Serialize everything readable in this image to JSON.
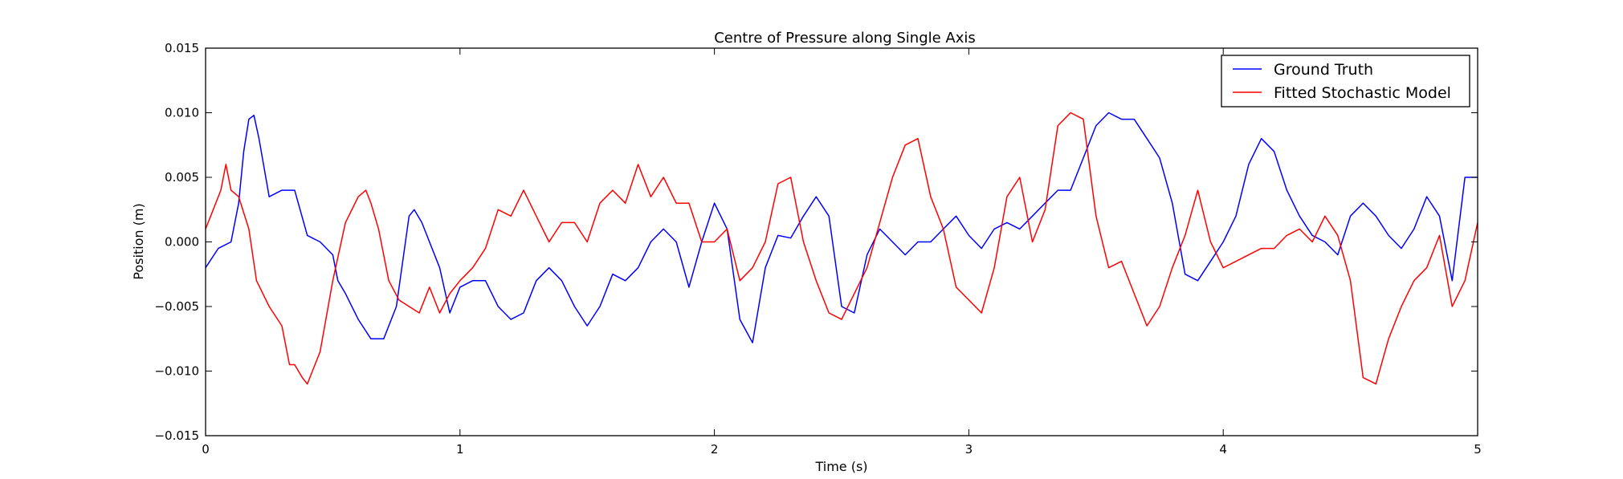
{
  "chart_data": {
    "type": "line",
    "title": "Centre of Pressure along Single Axis",
    "xlabel": "Time (s)",
    "ylabel": "Position (m)",
    "xlim": [
      0,
      5
    ],
    "ylim": [
      -0.015,
      0.015
    ],
    "xticks": [
      0,
      1,
      2,
      3,
      4,
      5
    ],
    "xtick_labels": [
      "0",
      "1",
      "2",
      "3",
      "4",
      "5"
    ],
    "yticks": [
      -0.015,
      -0.01,
      -0.005,
      0.0,
      0.005,
      0.01,
      0.015
    ],
    "ytick_labels": [
      "−0.015",
      "−0.010",
      "−0.005",
      "0.000",
      "0.005",
      "0.010",
      "0.015"
    ],
    "grid": false,
    "legend_position": "top-right",
    "series": [
      {
        "name": "Ground Truth",
        "color": "#0000ff",
        "x": [
          0,
          0.05,
          0.1,
          0.13,
          0.15,
          0.17,
          0.19,
          0.21,
          0.25,
          0.3,
          0.35,
          0.4,
          0.45,
          0.5,
          0.52,
          0.55,
          0.6,
          0.65,
          0.7,
          0.75,
          0.8,
          0.82,
          0.85,
          0.88,
          0.92,
          0.96,
          1.0,
          1.05,
          1.1,
          1.15,
          1.2,
          1.25,
          1.3,
          1.35,
          1.4,
          1.45,
          1.5,
          1.55,
          1.6,
          1.65,
          1.7,
          1.75,
          1.8,
          1.85,
          1.9,
          1.95,
          2.0,
          2.05,
          2.1,
          2.15,
          2.2,
          2.25,
          2.3,
          2.35,
          2.4,
          2.45,
          2.5,
          2.55,
          2.6,
          2.65,
          2.7,
          2.75,
          2.8,
          2.85,
          2.9,
          2.95,
          3.0,
          3.05,
          3.1,
          3.15,
          3.2,
          3.25,
          3.3,
          3.35,
          3.4,
          3.45,
          3.5,
          3.55,
          3.6,
          3.65,
          3.7,
          3.75,
          3.8,
          3.85,
          3.9,
          3.95,
          4.0,
          4.05,
          4.1,
          4.15,
          4.2,
          4.25,
          4.3,
          4.35,
          4.4,
          4.45,
          4.5,
          4.55,
          4.6,
          4.65,
          4.7,
          4.75,
          4.8,
          4.85,
          4.9,
          4.95,
          5.0
        ],
        "y": [
          -0.002,
          -0.0005,
          0.0,
          0.003,
          0.007,
          0.0095,
          0.0098,
          0.008,
          0.0035,
          0.004,
          0.004,
          0.0005,
          0.0,
          -0.001,
          -0.003,
          -0.004,
          -0.006,
          -0.0075,
          -0.0075,
          -0.005,
          0.002,
          0.0025,
          0.0015,
          0.0,
          -0.002,
          -0.0055,
          -0.0035,
          -0.003,
          -0.003,
          -0.005,
          -0.006,
          -0.0055,
          -0.003,
          -0.002,
          -0.003,
          -0.005,
          -0.0065,
          -0.005,
          -0.0025,
          -0.003,
          -0.002,
          0.0,
          0.001,
          0.0,
          -0.0035,
          0.0,
          0.003,
          0.001,
          -0.006,
          -0.0078,
          -0.002,
          0.0005,
          0.0003,
          0.002,
          0.0035,
          0.002,
          -0.005,
          -0.0055,
          -0.001,
          0.001,
          0.0,
          -0.001,
          0.0,
          0.0,
          0.001,
          0.002,
          0.0005,
          -0.0005,
          0.001,
          0.0015,
          0.001,
          0.002,
          0.003,
          0.004,
          0.004,
          0.0065,
          0.009,
          0.01,
          0.0095,
          0.0095,
          0.008,
          0.0065,
          0.003,
          -0.0025,
          -0.003,
          -0.0015,
          0.0,
          0.002,
          0.006,
          0.008,
          0.007,
          0.004,
          0.002,
          0.0005,
          0.0,
          -0.001,
          0.002,
          0.003,
          0.002,
          0.0005,
          -0.0005,
          0.001,
          0.0035,
          0.002,
          -0.003,
          0.005,
          0.005
        ]
      },
      {
        "name": "Fitted Stochastic Model",
        "color": "#ff0000",
        "x": [
          0,
          0.03,
          0.06,
          0.08,
          0.1,
          0.13,
          0.17,
          0.2,
          0.25,
          0.3,
          0.33,
          0.35,
          0.38,
          0.4,
          0.45,
          0.5,
          0.55,
          0.6,
          0.63,
          0.65,
          0.68,
          0.72,
          0.76,
          0.8,
          0.84,
          0.88,
          0.92,
          0.96,
          1.0,
          1.05,
          1.1,
          1.15,
          1.2,
          1.25,
          1.3,
          1.35,
          1.4,
          1.45,
          1.5,
          1.55,
          1.6,
          1.65,
          1.7,
          1.75,
          1.8,
          1.85,
          1.9,
          1.95,
          2.0,
          2.05,
          2.1,
          2.15,
          2.2,
          2.25,
          2.3,
          2.35,
          2.4,
          2.45,
          2.5,
          2.55,
          2.6,
          2.65,
          2.7,
          2.75,
          2.8,
          2.85,
          2.9,
          2.95,
          3.0,
          3.05,
          3.1,
          3.15,
          3.2,
          3.25,
          3.3,
          3.35,
          3.4,
          3.45,
          3.5,
          3.55,
          3.6,
          3.65,
          3.7,
          3.75,
          3.8,
          3.85,
          3.9,
          3.95,
          4.0,
          4.05,
          4.1,
          4.15,
          4.2,
          4.25,
          4.3,
          4.35,
          4.4,
          4.45,
          4.5,
          4.55,
          4.6,
          4.65,
          4.7,
          4.75,
          4.8,
          4.85,
          4.9,
          4.95,
          5.0
        ],
        "y": [
          0.001,
          0.0025,
          0.004,
          0.006,
          0.004,
          0.0035,
          0.001,
          -0.003,
          -0.005,
          -0.0065,
          -0.0095,
          -0.0095,
          -0.0105,
          -0.011,
          -0.0085,
          -0.003,
          0.0015,
          0.0035,
          0.004,
          0.003,
          0.001,
          -0.003,
          -0.0045,
          -0.005,
          -0.0055,
          -0.0035,
          -0.0055,
          -0.004,
          -0.003,
          -0.002,
          -0.0005,
          0.0025,
          0.002,
          0.004,
          0.002,
          0.0,
          0.0015,
          0.0015,
          0.0,
          0.003,
          0.004,
          0.003,
          0.006,
          0.0035,
          0.005,
          0.003,
          0.003,
          0.0,
          0.0,
          0.001,
          -0.003,
          -0.002,
          0.0,
          0.0045,
          0.005,
          0.0,
          -0.003,
          -0.0055,
          -0.006,
          -0.004,
          -0.002,
          0.0015,
          0.005,
          0.0075,
          0.008,
          0.0035,
          0.001,
          -0.0035,
          -0.0045,
          -0.0055,
          -0.002,
          0.0035,
          0.005,
          0.0,
          0.0025,
          0.009,
          0.01,
          0.0095,
          0.002,
          -0.002,
          -0.0015,
          -0.004,
          -0.0065,
          -0.005,
          -0.002,
          0.0005,
          0.004,
          0.0,
          -0.002,
          -0.0015,
          -0.001,
          -0.0005,
          -0.0005,
          0.0005,
          0.001,
          0.0,
          0.002,
          0.0005,
          -0.003,
          -0.0105,
          -0.011,
          -0.0075,
          -0.005,
          -0.003,
          -0.002,
          0.0005,
          -0.005,
          -0.003,
          0.0015
        ]
      }
    ]
  }
}
